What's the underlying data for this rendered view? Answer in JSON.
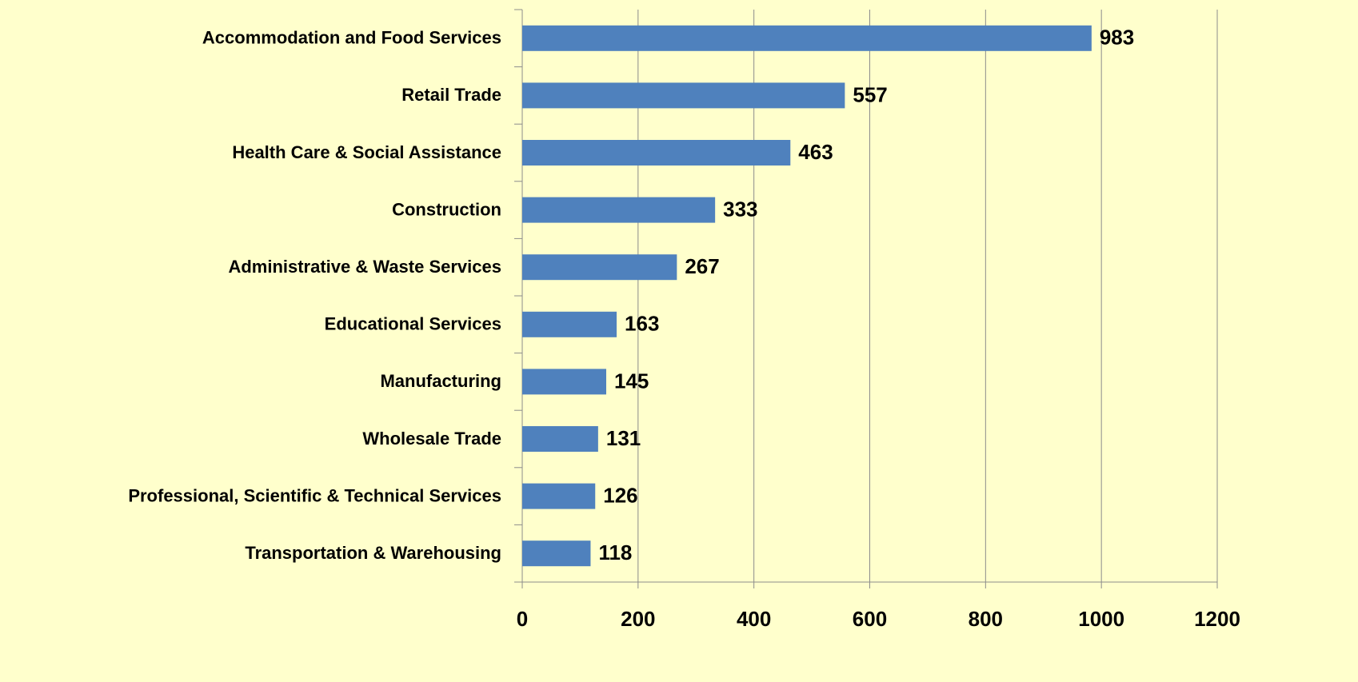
{
  "chart_data": {
    "type": "bar",
    "orientation": "horizontal",
    "categories": [
      "Accommodation and Food Services",
      "Retail Trade",
      "Health Care & Social Assistance",
      "Construction",
      "Administrative & Waste Services",
      "Educational Services",
      "Manufacturing",
      "Wholesale Trade",
      "Professional, Scientific & Technical Services",
      "Transportation & Warehousing"
    ],
    "values": [
      983,
      557,
      463,
      333,
      267,
      163,
      145,
      131,
      126,
      118
    ],
    "color": "#4f81bd",
    "xlim": [
      0,
      1200
    ],
    "xticks": [
      0,
      200,
      400,
      600,
      800,
      1000,
      1200
    ],
    "grid": true,
    "value_labels_shown": true
  }
}
